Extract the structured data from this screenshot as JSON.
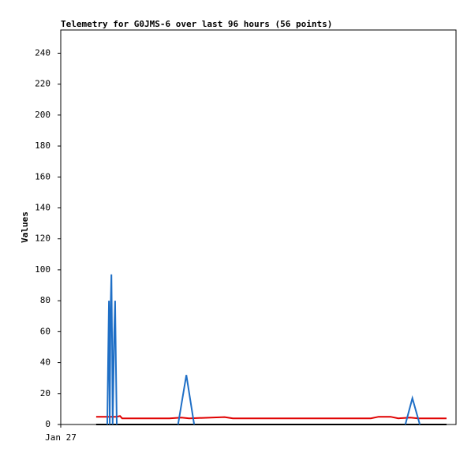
{
  "chart_data": {
    "type": "line",
    "title": "Telemetry for G0JMS-6 over last 96 hours (56 points)",
    "y_label": "Values",
    "xlim": [
      0,
      96
    ],
    "xticks": [
      {
        "value": 0,
        "label": "Jan 27"
      }
    ],
    "ylim": [
      0,
      255
    ],
    "yticks": [
      0,
      20,
      40,
      60,
      80,
      100,
      120,
      140,
      160,
      180,
      200,
      220,
      240
    ],
    "series": [
      {
        "color": "#000000",
        "x": [
          8.6,
          93.7
        ],
        "values": [
          0,
          0
        ]
      },
      {
        "color": "#e00000",
        "x": [
          8.6,
          13.6,
          14.4,
          14.9,
          26.4,
          29.3,
          31.2,
          39.8,
          41.8,
          75.3,
          77.2,
          80.1,
          82.0,
          84.9,
          86.8,
          93.7
        ],
        "values": [
          5,
          5,
          5.5,
          4,
          4,
          4.5,
          4,
          4.8,
          4,
          4,
          5,
          5,
          4,
          4.5,
          4,
          4
        ]
      },
      {
        "color": "#1f6fc6",
        "x": [
          11.3,
          11.5,
          11.7,
          11.9,
          12.1,
          12.3,
          12.5,
          12.6,
          13.0,
          13.2,
          13.4,
          13.6,
          null,
          28.5,
          30.5,
          32.4,
          null,
          83.7,
          85.4,
          87.2
        ],
        "values": [
          0,
          40,
          80,
          0,
          73,
          97,
          48,
          0,
          60,
          80,
          40,
          0,
          null,
          0,
          32,
          0,
          null,
          0,
          17,
          0
        ]
      }
    ]
  }
}
